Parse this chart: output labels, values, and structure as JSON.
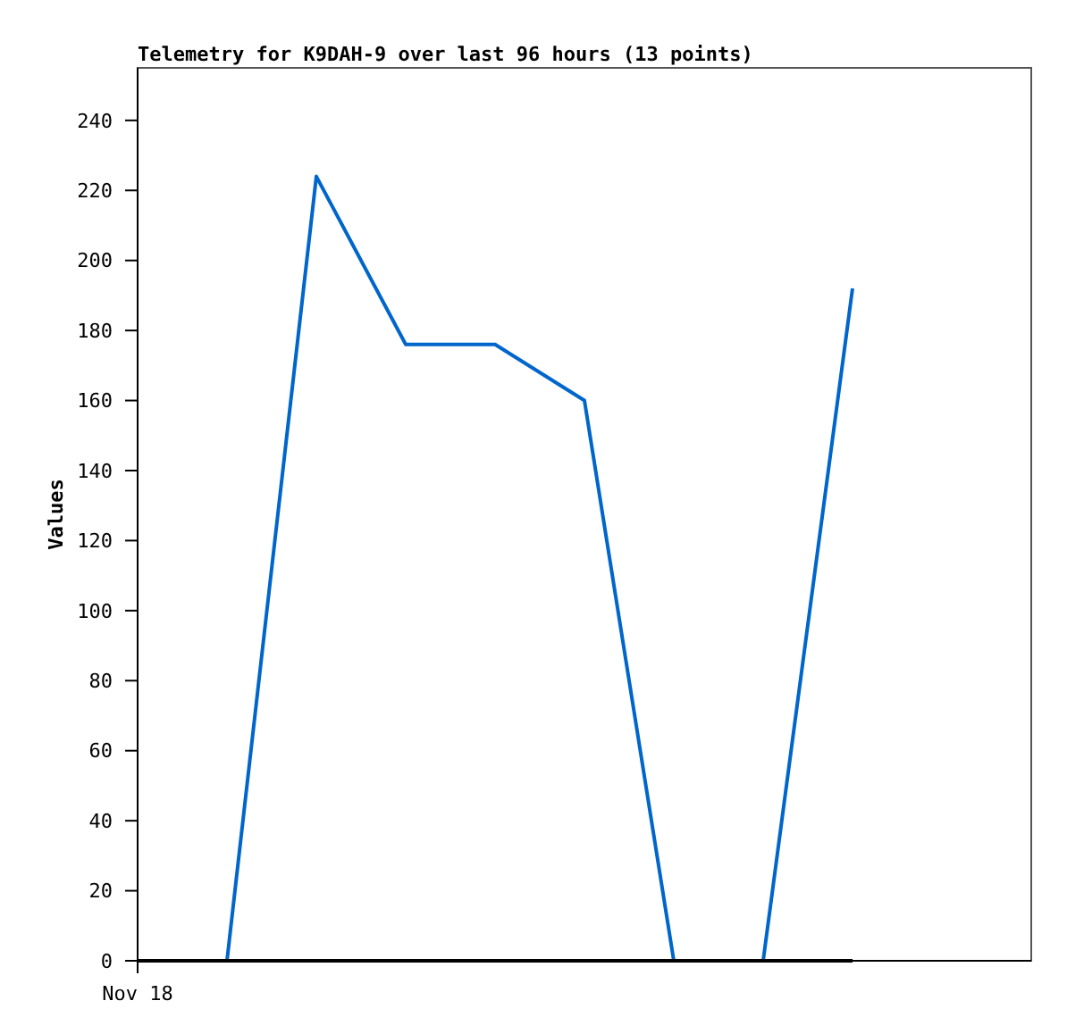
{
  "chart_data": {
    "type": "line",
    "title": "Telemetry for K9DAH-9 over last 96 hours (13 points)",
    "ylabel": "Values",
    "categories": [
      "Nov 18",
      null,
      null,
      null,
      null,
      null,
      null,
      null,
      null,
      null,
      null
    ],
    "ylim": [
      0,
      255
    ],
    "yticks": [
      0,
      20,
      40,
      60,
      80,
      100,
      120,
      140,
      160,
      180,
      200,
      220,
      240
    ],
    "marker": "none",
    "line_style": "solid",
    "series": [
      {
        "color": "#0066cc",
        "values": [
          0,
          0,
          224,
          176,
          176,
          160,
          0,
          0,
          192,
          null,
          null
        ]
      },
      {
        "color": "#000000",
        "values": [
          0,
          0,
          0,
          0,
          0,
          0,
          0,
          0,
          0,
          null,
          null
        ]
      }
    ]
  }
}
